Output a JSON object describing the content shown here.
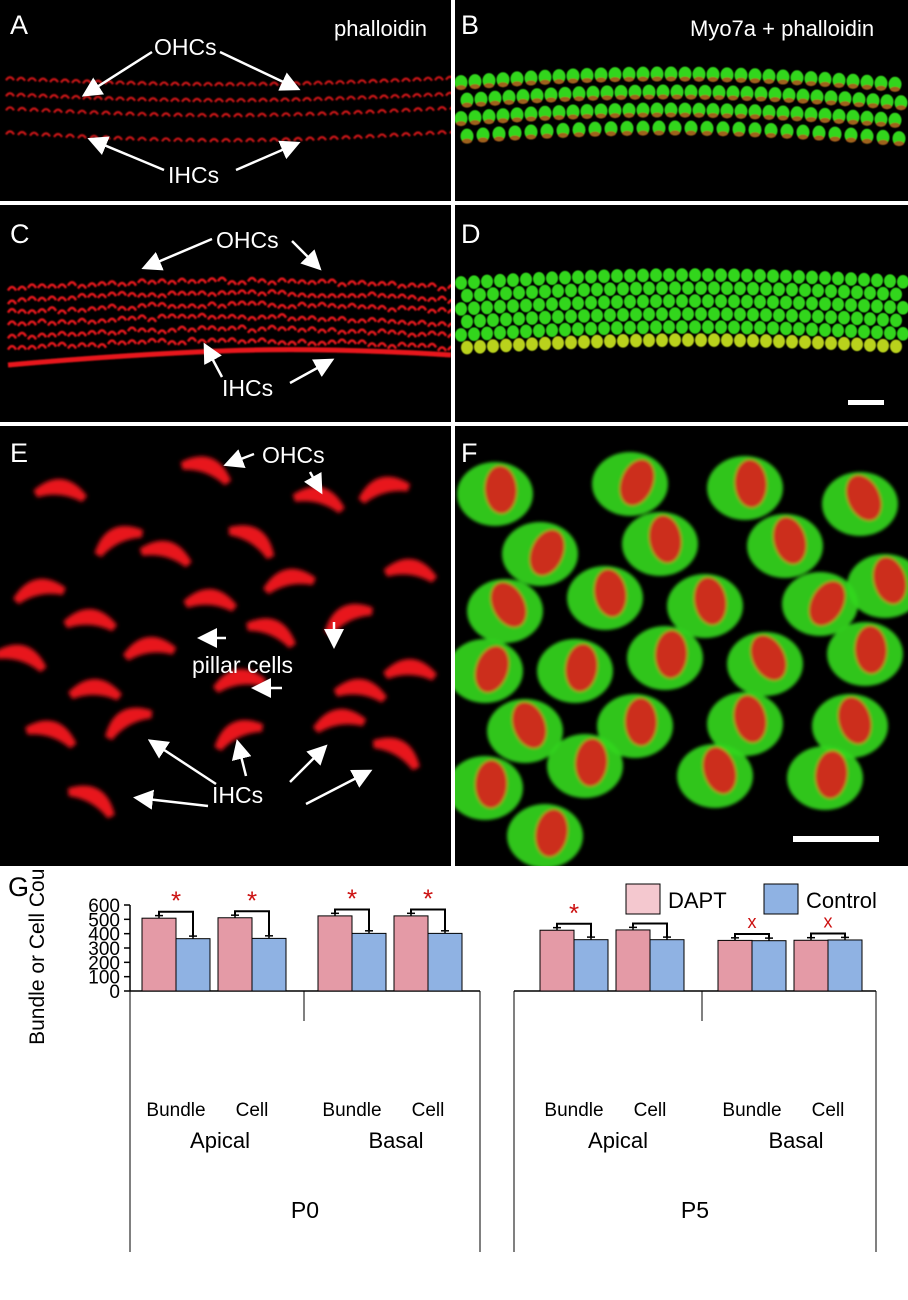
{
  "panels": {
    "A": {
      "letter": "A",
      "title": "phalloidin",
      "ohc_label": "OHCs",
      "ihc_label": "IHCs"
    },
    "B": {
      "letter": "B",
      "title": "Myo7a + phalloidin"
    },
    "C": {
      "letter": "C",
      "ohc_label": "OHCs",
      "ihc_label": "IHCs"
    },
    "D": {
      "letter": "D"
    },
    "E": {
      "letter": "E",
      "ohc_label": "OHCs",
      "pillar_label": "pillar cells",
      "ihc_label": "IHCs"
    },
    "F": {
      "letter": "F"
    }
  },
  "colors": {
    "phalloidin": "#e8141a",
    "myo7a": "#33d61e",
    "dapt": "#e49aa6",
    "control": "#8fb2e3",
    "significance": "#cc1111"
  },
  "chart_data": {
    "type": "bar",
    "panel_letter": "G",
    "ylabel": "Bundle or Cell Count",
    "ylim": [
      0,
      600
    ],
    "yticks": [
      0,
      100,
      200,
      300,
      400,
      500,
      600
    ],
    "legend": {
      "position": "top-right",
      "entries": [
        "DAPT",
        "Control"
      ]
    },
    "series_names": [
      "DAPT",
      "Control"
    ],
    "groups": [
      {
        "age": "P0",
        "regions": [
          {
            "name": "Apical",
            "categories": [
              {
                "label": "Bundle",
                "dapt": 508,
                "control": 365,
                "sig": "*"
              },
              {
                "label": "Cell",
                "dapt": 511,
                "control": 367,
                "sig": "*"
              }
            ]
          },
          {
            "name": "Basal",
            "categories": [
              {
                "label": "Bundle",
                "dapt": 524,
                "control": 402,
                "sig": "*"
              },
              {
                "label": "Cell",
                "dapt": 524,
                "control": 402,
                "sig": "*"
              }
            ]
          }
        ]
      },
      {
        "age": "P5",
        "regions": [
          {
            "name": "Apical",
            "categories": [
              {
                "label": "Bundle",
                "dapt": 424,
                "control": 358,
                "sig": "*"
              },
              {
                "label": "Cell",
                "dapt": 426,
                "control": 358,
                "sig": "*"
              }
            ]
          },
          {
            "name": "Basal",
            "categories": [
              {
                "label": "Bundle",
                "dapt": 353,
                "control": 351,
                "sig": "x"
              },
              {
                "label": "Cell",
                "dapt": 354,
                "control": 356,
                "sig": "x"
              }
            ]
          }
        ]
      }
    ]
  }
}
